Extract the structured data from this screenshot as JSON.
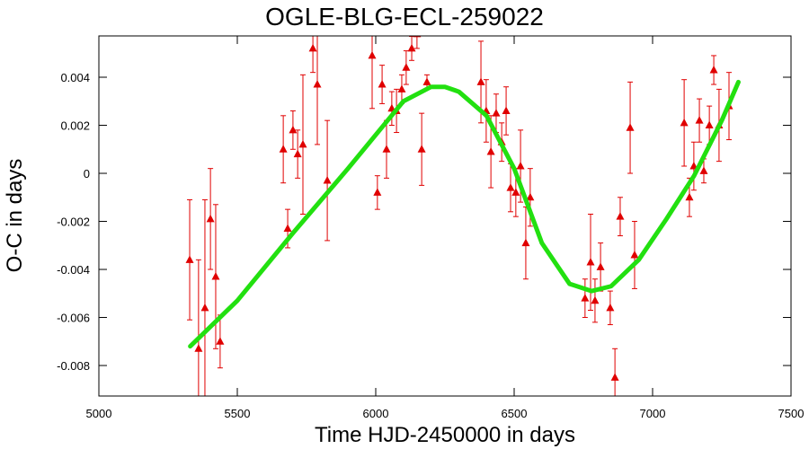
{
  "chart_data": {
    "type": "scatter",
    "title": "OGLE-BLG-ECL-259022",
    "x_label": "Time HJD-2450000 in days",
    "y_label": "O-C in days",
    "xlim": [
      5000,
      7500
    ],
    "ylim": [
      -0.00927,
      0.00572
    ],
    "xticks": [
      5000,
      5500,
      6000,
      6500,
      7000,
      7500
    ],
    "yticks": [
      -0.008,
      -0.006,
      -0.004,
      -0.002,
      0,
      0.002,
      0.004
    ],
    "series": [
      {
        "name": "O-C",
        "color": "#e00000",
        "x": [
          5328,
          5360,
          5383,
          5403,
          5422,
          5438,
          5666,
          5682,
          5701,
          5718,
          5737,
          5773,
          5789,
          5825,
          5987,
          6006,
          6023,
          6039,
          6058,
          6075,
          6094,
          6110,
          6130,
          6149,
          6166,
          6185,
          6380,
          6399,
          6416,
          6435,
          6455,
          6471,
          6487,
          6506,
          6523,
          6542,
          6558,
          6756,
          6776,
          6792,
          6812,
          6847,
          6864,
          6883,
          6919,
          6935,
          7114,
          7133,
          7149,
          7169,
          7185,
          7205,
          7221,
          7240,
          7276
        ],
        "values": [
          -0.0036,
          -0.0073,
          -0.0056,
          -0.0019,
          -0.0043,
          -0.007,
          0.001,
          -0.0023,
          0.0018,
          0.0008,
          0.0012,
          0.0052,
          0.0037,
          -0.0003,
          0.0049,
          -0.0008,
          0.0037,
          0.001,
          0.0027,
          0.0026,
          0.0035,
          0.0044,
          0.0052,
          0.0058,
          0.001,
          0.0038,
          0.0038,
          0.0026,
          0.0009,
          0.0025,
          0.0013,
          0.0026,
          -0.0006,
          -0.0008,
          0.0003,
          -0.0029,
          -0.001,
          -0.0052,
          -0.0037,
          -0.0053,
          -0.0039,
          -0.0056,
          -0.0085,
          -0.0018,
          0.0019,
          -0.0034,
          0.0021,
          -0.001,
          0.0003,
          0.0022,
          0.0001,
          0.002,
          0.0043,
          0.002,
          0.0028
        ],
        "errors": [
          0.0025,
          0.0037,
          0.0045,
          0.0021,
          0.003,
          0.0011,
          0.0014,
          0.0008,
          0.0008,
          0.001,
          0.0029,
          0.001,
          0.0025,
          0.0025,
          0.0022,
          0.0007,
          0.0008,
          0.0012,
          0.0007,
          0.0009,
          0.0006,
          0.0007,
          0.0005,
          0.0006,
          0.0015,
          0.0003,
          0.0017,
          0.0013,
          0.0015,
          0.0008,
          0.0008,
          0.001,
          0.001,
          0.001,
          0.0015,
          0.0015,
          0.0012,
          0.0008,
          0.002,
          0.0009,
          0.001,
          0.0007,
          0.0012,
          0.0008,
          0.0019,
          0.0014,
          0.0018,
          0.0008,
          0.001,
          0.0009,
          0.0005,
          0.0008,
          0.0006,
          0.0015,
          0.0014
        ]
      },
      {
        "name": "fit",
        "type": "line",
        "color": "#22e010",
        "x": [
          5330,
          5500,
          5700,
          5900,
          6000,
          6100,
          6200,
          6250,
          6300,
          6400,
          6500,
          6600,
          6700,
          6780,
          6850,
          6950,
          7050,
          7150,
          7250,
          7310
        ],
        "values": [
          -0.0072,
          -0.0053,
          -0.0025,
          0.0002,
          0.0016,
          0.003,
          0.0036,
          0.0036,
          0.0034,
          0.0024,
          0.0002,
          -0.0029,
          -0.0046,
          -0.0049,
          -0.0047,
          -0.0036,
          -0.0019,
          -0.0001,
          0.0022,
          0.0038
        ]
      }
    ]
  }
}
